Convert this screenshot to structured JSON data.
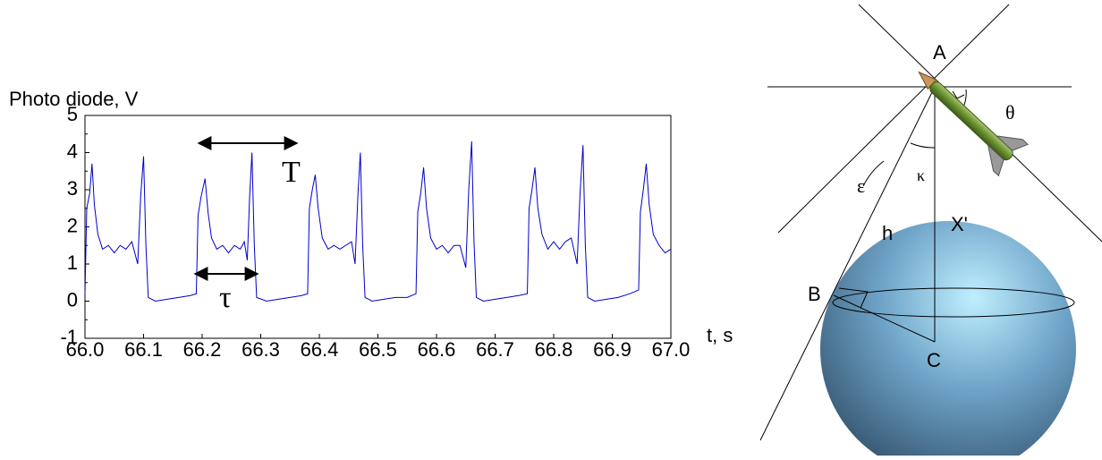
{
  "chart_data": {
    "type": "line",
    "y_label": "Photo diode, V",
    "x_label": "t, s",
    "annotations": {
      "period": "T",
      "pulse": "τ"
    },
    "series": [
      {
        "color": "#0000cc",
        "x": [
          66.0,
          66.003,
          66.008,
          66.012,
          66.016,
          66.022,
          66.03,
          66.04,
          66.05,
          66.06,
          66.07,
          66.08,
          66.09,
          66.095,
          66.1,
          66.104,
          66.108,
          66.12,
          66.14,
          66.16,
          66.18,
          66.19,
          66.193,
          66.198,
          66.205,
          66.21,
          66.216,
          66.225,
          66.235,
          66.245,
          66.255,
          66.265,
          66.272,
          66.277,
          66.281,
          66.285,
          66.289,
          66.293,
          66.31,
          66.33,
          66.35,
          66.37,
          66.38,
          66.383,
          66.388,
          66.393,
          66.398,
          66.405,
          66.415,
          66.425,
          66.435,
          66.445,
          66.455,
          66.461,
          66.466,
          66.47,
          66.474,
          66.478,
          66.49,
          66.51,
          66.53,
          66.55,
          66.565,
          66.568,
          66.573,
          66.578,
          66.583,
          66.59,
          66.6,
          66.61,
          66.62,
          66.63,
          66.64,
          66.65,
          66.655,
          66.66,
          66.664,
          66.668,
          66.68,
          66.7,
          66.72,
          66.74,
          66.755,
          66.758,
          66.763,
          66.768,
          66.773,
          66.78,
          66.79,
          66.8,
          66.81,
          66.82,
          66.83,
          66.84,
          66.845,
          66.85,
          66.854,
          66.858,
          66.87,
          66.89,
          66.91,
          66.93,
          66.945,
          66.948,
          66.953,
          66.958,
          66.963,
          66.97,
          66.98,
          66.99,
          67.0
        ],
        "values": [
          0.2,
          2.5,
          2.9,
          3.7,
          2.6,
          1.8,
          1.4,
          1.5,
          1.3,
          1.5,
          1.4,
          1.6,
          1.0,
          2.8,
          3.9,
          1.5,
          0.1,
          0.0,
          0.05,
          0.1,
          0.15,
          0.2,
          2.3,
          2.8,
          3.3,
          2.4,
          1.7,
          1.4,
          1.5,
          1.3,
          1.5,
          1.4,
          1.6,
          1.1,
          2.8,
          4.0,
          1.5,
          0.1,
          0.0,
          0.05,
          0.1,
          0.15,
          0.2,
          2.5,
          3.0,
          3.4,
          2.5,
          1.7,
          1.4,
          1.5,
          1.4,
          1.5,
          1.6,
          1.0,
          2.9,
          4.0,
          1.5,
          0.1,
          0.0,
          0.05,
          0.1,
          0.1,
          0.2,
          2.4,
          2.9,
          3.6,
          2.5,
          1.7,
          1.4,
          1.5,
          1.3,
          1.5,
          1.5,
          0.9,
          3.0,
          4.3,
          1.6,
          0.1,
          0.0,
          0.05,
          0.1,
          0.15,
          0.2,
          2.5,
          3.0,
          3.6,
          2.5,
          1.8,
          1.4,
          1.6,
          1.4,
          1.6,
          1.7,
          1.0,
          2.9,
          4.2,
          1.5,
          0.1,
          0.0,
          0.05,
          0.1,
          0.2,
          0.3,
          2.4,
          3.0,
          3.7,
          2.6,
          1.8,
          1.5,
          1.3,
          1.4
        ]
      }
    ],
    "xlim": [
      66.0,
      67.0
    ],
    "xticks": [
      {
        "value": 66,
        "label": "66.0"
      },
      66.1,
      66.2,
      66.3,
      66.4,
      66.5,
      66.6,
      66.7,
      66.8,
      66.9,
      {
        "value": 67,
        "label": "67.0"
      }
    ],
    "ylim": [
      -1,
      5
    ],
    "yticks": [
      5,
      4,
      3,
      2,
      1,
      0,
      -1
    ]
  },
  "diagram": {
    "labels": {
      "a": "A",
      "theta": "θ",
      "epsilon": "ε",
      "kappa": "κ",
      "x_prime": "X'",
      "h": "h",
      "b": "B",
      "c": "C"
    }
  }
}
